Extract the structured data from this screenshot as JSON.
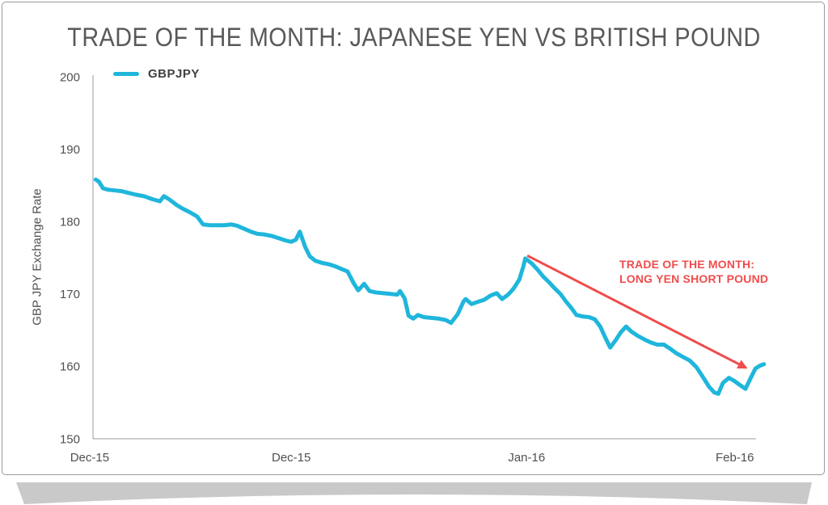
{
  "title": "TRADE OF THE MONTH: JAPANESE YEN VS BRITISH POUND",
  "legend": {
    "label": "GBPJPY"
  },
  "colors": {
    "line": "#1fb6db",
    "annotation": "#f04c4c",
    "axis": "#9b9b9b",
    "tick_text": "#4f5052",
    "title_text": "#58595b",
    "curl": "#c9c9c9",
    "card_border": "#9a9a9a"
  },
  "chart_data": {
    "type": "line",
    "title": "TRADE OF THE MONTH: JAPANESE YEN VS BRITISH POUND",
    "xlabel": "",
    "ylabel": "GBP JPY Exchange Rate",
    "ylim": [
      150,
      200
    ],
    "yticks": [
      200,
      190,
      180,
      170,
      160,
      150
    ],
    "xticks": [
      {
        "label": "Dec-15",
        "pos": -0.005
      },
      {
        "label": "Dec-15",
        "pos": 0.299
      },
      {
        "label": "Jan-16",
        "pos": 0.654
      },
      {
        "label": "Feb-16",
        "pos": 0.968
      }
    ],
    "grid": false,
    "legend_position": "top-left",
    "series": [
      {
        "name": "GBPJPY",
        "color": "#1fb6db",
        "points": [
          [
            0.004,
            185.8
          ],
          [
            0.009,
            185.5
          ],
          [
            0.015,
            184.6
          ],
          [
            0.023,
            184.4
          ],
          [
            0.033,
            184.3
          ],
          [
            0.043,
            184.2
          ],
          [
            0.052,
            184.0
          ],
          [
            0.065,
            183.7
          ],
          [
            0.077,
            183.5
          ],
          [
            0.089,
            183.1
          ],
          [
            0.101,
            182.8
          ],
          [
            0.107,
            183.5
          ],
          [
            0.116,
            183.0
          ],
          [
            0.126,
            182.3
          ],
          [
            0.135,
            181.8
          ],
          [
            0.146,
            181.3
          ],
          [
            0.157,
            180.7
          ],
          [
            0.166,
            179.6
          ],
          [
            0.176,
            179.5
          ],
          [
            0.187,
            179.5
          ],
          [
            0.198,
            179.5
          ],
          [
            0.209,
            179.6
          ],
          [
            0.218,
            179.4
          ],
          [
            0.228,
            179.0
          ],
          [
            0.238,
            178.6
          ],
          [
            0.248,
            178.3
          ],
          [
            0.259,
            178.2
          ],
          [
            0.27,
            178.0
          ],
          [
            0.28,
            177.7
          ],
          [
            0.29,
            177.4
          ],
          [
            0.299,
            177.2
          ],
          [
            0.306,
            177.5
          ],
          [
            0.312,
            178.6
          ],
          [
            0.32,
            176.5
          ],
          [
            0.327,
            175.2
          ],
          [
            0.335,
            174.6
          ],
          [
            0.345,
            174.3
          ],
          [
            0.356,
            174.1
          ],
          [
            0.366,
            173.8
          ],
          [
            0.376,
            173.4
          ],
          [
            0.384,
            173.1
          ],
          [
            0.393,
            171.5
          ],
          [
            0.4,
            170.5
          ],
          [
            0.409,
            171.4
          ],
          [
            0.417,
            170.4
          ],
          [
            0.427,
            170.2
          ],
          [
            0.438,
            170.1
          ],
          [
            0.449,
            170.0
          ],
          [
            0.459,
            169.9
          ],
          [
            0.463,
            170.4
          ],
          [
            0.47,
            169.4
          ],
          [
            0.476,
            167.0
          ],
          [
            0.483,
            166.6
          ],
          [
            0.49,
            167.1
          ],
          [
            0.499,
            166.8
          ],
          [
            0.51,
            166.7
          ],
          [
            0.521,
            166.6
          ],
          [
            0.532,
            166.4
          ],
          [
            0.54,
            166.0
          ],
          [
            0.55,
            167.2
          ],
          [
            0.559,
            169.0
          ],
          [
            0.562,
            169.3
          ],
          [
            0.571,
            168.6
          ],
          [
            0.58,
            168.9
          ],
          [
            0.59,
            169.2
          ],
          [
            0.6,
            169.8
          ],
          [
            0.609,
            170.1
          ],
          [
            0.617,
            169.3
          ],
          [
            0.626,
            169.9
          ],
          [
            0.634,
            170.7
          ],
          [
            0.643,
            172.0
          ],
          [
            0.649,
            173.8
          ],
          [
            0.652,
            174.9
          ],
          [
            0.662,
            174.2
          ],
          [
            0.671,
            173.3
          ],
          [
            0.679,
            172.4
          ],
          [
            0.688,
            171.6
          ],
          [
            0.696,
            170.8
          ],
          [
            0.705,
            170.0
          ],
          [
            0.713,
            169.0
          ],
          [
            0.722,
            168.0
          ],
          [
            0.729,
            167.1
          ],
          [
            0.738,
            166.9
          ],
          [
            0.748,
            166.8
          ],
          [
            0.757,
            166.5
          ],
          [
            0.765,
            165.5
          ],
          [
            0.773,
            163.9
          ],
          [
            0.78,
            162.6
          ],
          [
            0.789,
            163.7
          ],
          [
            0.796,
            164.7
          ],
          [
            0.804,
            165.5
          ],
          [
            0.812,
            164.8
          ],
          [
            0.822,
            164.2
          ],
          [
            0.832,
            163.7
          ],
          [
            0.841,
            163.3
          ],
          [
            0.851,
            163.0
          ],
          [
            0.861,
            163.0
          ],
          [
            0.871,
            162.4
          ],
          [
            0.88,
            161.8
          ],
          [
            0.89,
            161.3
          ],
          [
            0.9,
            160.8
          ],
          [
            0.91,
            159.9
          ],
          [
            0.92,
            158.5
          ],
          [
            0.929,
            157.2
          ],
          [
            0.937,
            156.4
          ],
          [
            0.943,
            156.2
          ],
          [
            0.95,
            157.7
          ],
          [
            0.959,
            158.4
          ],
          [
            0.967,
            158.0
          ],
          [
            0.976,
            157.4
          ],
          [
            0.984,
            156.9
          ],
          [
            0.991,
            158.2
          ],
          [
            0.999,
            159.7
          ],
          [
            1.006,
            160.1
          ],
          [
            1.012,
            160.3
          ]
        ]
      }
    ],
    "annotation": {
      "line1": "TRADE OF THE MONTH:",
      "line2": "LONG YEN SHORT POUND",
      "color": "#f04c4c",
      "arrow_from": [
        0.655,
        175.3
      ],
      "arrow_to": [
        0.985,
        159.8
      ]
    }
  }
}
